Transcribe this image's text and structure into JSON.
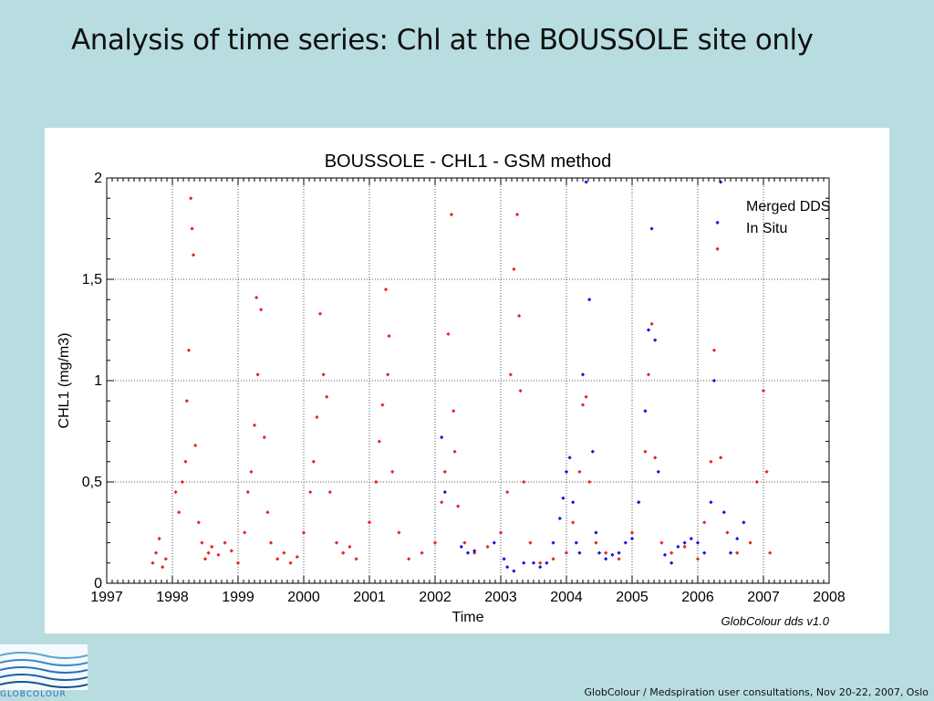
{
  "slide": {
    "title": "Analysis of time series: Chl at the BOUSSOLE site only",
    "footer": "GlobColour / Medspiration user consultations, Nov 20-22, 2007, Oslo",
    "logo_text": "GLOBCOLOUR"
  },
  "chart_data": {
    "type": "scatter",
    "title": "BOUSSOLE - CHL1 - GSM method",
    "xlabel": "Time",
    "ylabel": "CHL1 (mg/m3)",
    "xlim": [
      1997,
      2008
    ],
    "ylim": [
      0,
      2
    ],
    "x_ticks": [
      "1997",
      "1998",
      "1999",
      "2000",
      "2001",
      "2002",
      "2003",
      "2004",
      "2005",
      "2006",
      "2007",
      "2008"
    ],
    "y_ticks": [
      "0",
      "0,5",
      "1",
      "1,5",
      "2"
    ],
    "grid": true,
    "legend_position": "top-right",
    "watermark": "GlobColour dds v1.0",
    "colors": {
      "merged": "#e8251f",
      "insitu": "#1414e0"
    },
    "series": [
      {
        "name": "Merged DDS",
        "color": "#e8251f",
        "points": [
          [
            1997.7,
            0.1
          ],
          [
            1997.75,
            0.15
          ],
          [
            1997.8,
            0.22
          ],
          [
            1997.85,
            0.08
          ],
          [
            1997.9,
            0.12
          ],
          [
            1998.05,
            0.45
          ],
          [
            1998.1,
            0.35
          ],
          [
            1998.15,
            0.5
          ],
          [
            1998.2,
            0.6
          ],
          [
            1998.22,
            0.9
          ],
          [
            1998.25,
            1.15
          ],
          [
            1998.28,
            1.9
          ],
          [
            1998.3,
            1.75
          ],
          [
            1998.32,
            1.62
          ],
          [
            1998.35,
            0.68
          ],
          [
            1998.4,
            0.3
          ],
          [
            1998.45,
            0.2
          ],
          [
            1998.5,
            0.12
          ],
          [
            1998.55,
            0.15
          ],
          [
            1998.6,
            0.18
          ],
          [
            1998.7,
            0.14
          ],
          [
            1998.8,
            0.2
          ],
          [
            1998.9,
            0.16
          ],
          [
            1999.0,
            0.1
          ],
          [
            1999.1,
            0.25
          ],
          [
            1999.15,
            0.45
          ],
          [
            1999.2,
            0.55
          ],
          [
            1999.25,
            0.78
          ],
          [
            1999.28,
            1.41
          ],
          [
            1999.3,
            1.03
          ],
          [
            1999.35,
            1.35
          ],
          [
            1999.4,
            0.72
          ],
          [
            1999.45,
            0.35
          ],
          [
            1999.5,
            0.2
          ],
          [
            1999.6,
            0.12
          ],
          [
            1999.7,
            0.15
          ],
          [
            1999.8,
            0.1
          ],
          [
            1999.9,
            0.13
          ],
          [
            2000.0,
            0.25
          ],
          [
            2000.1,
            0.45
          ],
          [
            2000.15,
            0.6
          ],
          [
            2000.2,
            0.82
          ],
          [
            2000.25,
            1.33
          ],
          [
            2000.3,
            1.03
          ],
          [
            2000.35,
            0.92
          ],
          [
            2000.4,
            0.45
          ],
          [
            2000.5,
            0.2
          ],
          [
            2000.6,
            0.15
          ],
          [
            2000.7,
            0.18
          ],
          [
            2000.8,
            0.12
          ],
          [
            2001.0,
            0.3
          ],
          [
            2001.1,
            0.5
          ],
          [
            2001.15,
            0.7
          ],
          [
            2001.2,
            0.88
          ],
          [
            2001.25,
            1.45
          ],
          [
            2001.28,
            1.03
          ],
          [
            2001.3,
            1.22
          ],
          [
            2001.35,
            0.55
          ],
          [
            2001.45,
            0.25
          ],
          [
            2001.6,
            0.12
          ],
          [
            2001.8,
            0.15
          ],
          [
            2002.0,
            0.2
          ],
          [
            2002.1,
            0.4
          ],
          [
            2002.15,
            0.55
          ],
          [
            2002.2,
            1.23
          ],
          [
            2002.25,
            1.82
          ],
          [
            2002.28,
            0.85
          ],
          [
            2002.3,
            0.65
          ],
          [
            2002.35,
            0.38
          ],
          [
            2002.45,
            0.2
          ],
          [
            2002.6,
            0.15
          ],
          [
            2002.8,
            0.18
          ],
          [
            2003.0,
            0.25
          ],
          [
            2003.1,
            0.45
          ],
          [
            2003.15,
            1.03
          ],
          [
            2003.2,
            1.55
          ],
          [
            2003.25,
            1.82
          ],
          [
            2003.28,
            1.32
          ],
          [
            2003.3,
            0.95
          ],
          [
            2003.35,
            0.5
          ],
          [
            2003.45,
            0.2
          ],
          [
            2003.6,
            0.1
          ],
          [
            2003.8,
            0.12
          ],
          [
            2004.0,
            0.15
          ],
          [
            2004.1,
            0.3
          ],
          [
            2004.2,
            0.55
          ],
          [
            2004.25,
            0.88
          ],
          [
            2004.3,
            0.92
          ],
          [
            2004.35,
            0.5
          ],
          [
            2004.45,
            0.2
          ],
          [
            2004.6,
            0.15
          ],
          [
            2004.8,
            0.12
          ],
          [
            2005.0,
            0.25
          ],
          [
            2005.1,
            0.4
          ],
          [
            2005.2,
            0.65
          ],
          [
            2005.25,
            1.03
          ],
          [
            2005.3,
            1.28
          ],
          [
            2005.35,
            0.62
          ],
          [
            2005.45,
            0.2
          ],
          [
            2005.6,
            0.15
          ],
          [
            2005.8,
            0.18
          ],
          [
            2006.0,
            0.12
          ],
          [
            2006.1,
            0.3
          ],
          [
            2006.2,
            0.6
          ],
          [
            2006.25,
            1.15
          ],
          [
            2006.3,
            1.65
          ],
          [
            2006.35,
            0.62
          ],
          [
            2006.45,
            0.25
          ],
          [
            2006.6,
            0.15
          ],
          [
            2006.8,
            0.2
          ],
          [
            2006.9,
            0.5
          ],
          [
            2007.0,
            0.95
          ],
          [
            2007.05,
            0.55
          ],
          [
            2007.1,
            0.15
          ]
        ]
      },
      {
        "name": "In Situ",
        "color": "#1414e0",
        "points": [
          [
            2002.1,
            0.72
          ],
          [
            2002.15,
            0.45
          ],
          [
            2002.4,
            0.18
          ],
          [
            2002.5,
            0.15
          ],
          [
            2002.6,
            0.16
          ],
          [
            2002.9,
            0.2
          ],
          [
            2003.05,
            0.12
          ],
          [
            2003.1,
            0.08
          ],
          [
            2003.2,
            0.06
          ],
          [
            2003.35,
            0.1
          ],
          [
            2003.5,
            0.1
          ],
          [
            2003.6,
            0.08
          ],
          [
            2003.7,
            0.1
          ],
          [
            2003.8,
            0.2
          ],
          [
            2003.9,
            0.32
          ],
          [
            2003.95,
            0.42
          ],
          [
            2004.0,
            0.55
          ],
          [
            2004.05,
            0.62
          ],
          [
            2004.1,
            0.4
          ],
          [
            2004.15,
            0.2
          ],
          [
            2004.2,
            0.15
          ],
          [
            2004.25,
            1.03
          ],
          [
            2004.3,
            1.98
          ],
          [
            2004.35,
            1.4
          ],
          [
            2004.4,
            0.65
          ],
          [
            2004.45,
            0.25
          ],
          [
            2004.5,
            0.15
          ],
          [
            2004.6,
            0.12
          ],
          [
            2004.7,
            0.14
          ],
          [
            2004.8,
            0.15
          ],
          [
            2004.9,
            0.2
          ],
          [
            2005.0,
            0.22
          ],
          [
            2005.1,
            0.4
          ],
          [
            2005.2,
            0.85
          ],
          [
            2005.25,
            1.25
          ],
          [
            2005.3,
            1.75
          ],
          [
            2005.35,
            1.2
          ],
          [
            2005.4,
            0.55
          ],
          [
            2005.5,
            0.14
          ],
          [
            2005.6,
            0.1
          ],
          [
            2005.7,
            0.18
          ],
          [
            2005.8,
            0.2
          ],
          [
            2005.9,
            0.22
          ],
          [
            2006.0,
            0.2
          ],
          [
            2006.1,
            0.15
          ],
          [
            2006.2,
            0.4
          ],
          [
            2006.25,
            1.0
          ],
          [
            2006.3,
            1.78
          ],
          [
            2006.35,
            1.98
          ],
          [
            2006.4,
            0.35
          ],
          [
            2006.5,
            0.15
          ],
          [
            2006.6,
            0.22
          ],
          [
            2006.7,
            0.3
          ]
        ]
      }
    ]
  }
}
